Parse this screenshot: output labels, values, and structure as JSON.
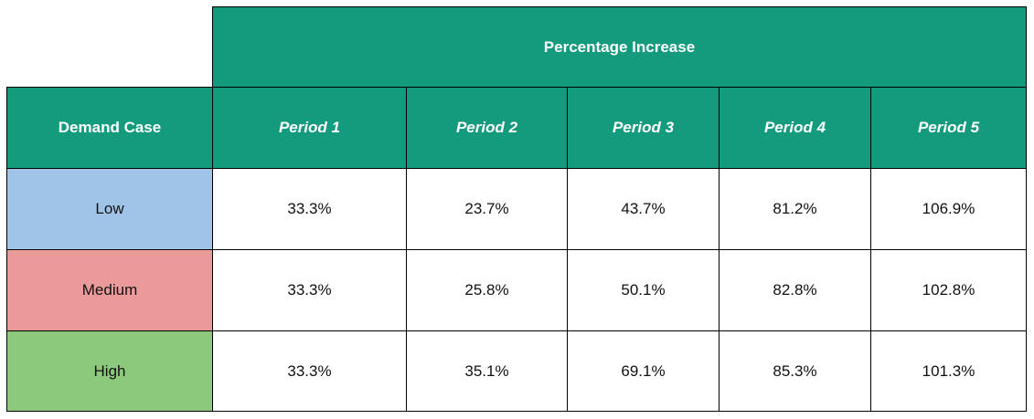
{
  "chart_data": {
    "type": "table",
    "header_group": "Percentage Increase",
    "row_header_label": "Demand Case",
    "columns": [
      "Period 1",
      "Period 2",
      "Period 3",
      "Period 4",
      "Period 5"
    ],
    "rows": [
      {
        "label": "Low",
        "color": "#a0c4e8",
        "values": [
          "33.3%",
          "23.7%",
          "43.7%",
          "81.2%",
          "106.9%"
        ]
      },
      {
        "label": "Medium",
        "color": "#eb9a9a",
        "values": [
          "33.3%",
          "25.8%",
          "50.1%",
          "82.8%",
          "102.8%"
        ]
      },
      {
        "label": "High",
        "color": "#8cc97c",
        "values": [
          "33.3%",
          "35.1%",
          "69.1%",
          "85.3%",
          "101.3%"
        ]
      }
    ],
    "header_color": "#149a7d"
  }
}
